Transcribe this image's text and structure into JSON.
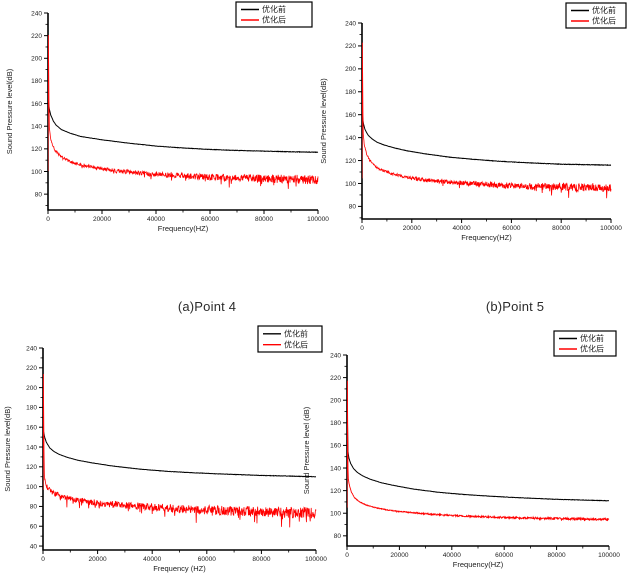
{
  "captions": {
    "a": "(a)Point 4",
    "b": "(b)Point 5"
  },
  "colors": {
    "before": "#000000",
    "after": "#ff0000"
  },
  "chart_data": [
    {
      "id": "top-left-point4",
      "type": "line",
      "title": "",
      "xlabel": "Frequency(HZ)",
      "ylabel": "Sound Pressure level(dB)",
      "xlim": [
        0,
        100000
      ],
      "ylim": [
        66,
        240
      ],
      "xticks": [
        0,
        20000,
        40000,
        60000,
        80000,
        100000
      ],
      "yticks": [
        80,
        100,
        120,
        140,
        160,
        180,
        200,
        220,
        240
      ],
      "xminor": 10000,
      "yminor": 10,
      "grid": false,
      "legend_position": "top-center-right",
      "series": [
        {
          "name": "优化前",
          "color": "#000000",
          "width": 1.0,
          "seed": 101,
          "noise_db": [
            0.1,
            0.25
          ],
          "points": [
            [
              0,
              148
            ],
            [
              100,
              163
            ],
            [
              500,
              155
            ],
            [
              1000,
              150
            ],
            [
              2000,
              144.5
            ],
            [
              3000,
              141
            ],
            [
              5000,
              137
            ],
            [
              8000,
              134
            ],
            [
              12000,
              131
            ],
            [
              16000,
              129.5
            ],
            [
              20000,
              128
            ],
            [
              30000,
              125
            ],
            [
              40000,
              122.5
            ],
            [
              50000,
              120.8
            ],
            [
              60000,
              119.5
            ],
            [
              70000,
              118.6
            ],
            [
              80000,
              118
            ],
            [
              90000,
              117.4
            ],
            [
              100000,
              117
            ]
          ]
        },
        {
          "name": "优化后",
          "color": "#ff0000",
          "width": 0.8,
          "seed": 102,
          "noise_db": [
            0.8,
            4.2
          ],
          "spike_prob": 0.035,
          "spike_scale": 2.2,
          "points": [
            [
              0,
              100
            ],
            [
              130,
              225
            ],
            [
              450,
              140
            ],
            [
              900,
              130
            ],
            [
              1500,
              124.5
            ],
            [
              2500,
              119
            ],
            [
              4000,
              115
            ],
            [
              6000,
              111.5
            ],
            [
              9000,
              108
            ],
            [
              13000,
              105.5
            ],
            [
              18000,
              103.3
            ],
            [
              25000,
              100.8
            ],
            [
              35000,
              98.5
            ],
            [
              45000,
              96.8
            ],
            [
              55000,
              95.6
            ],
            [
              70000,
              94.3
            ],
            [
              85000,
              93.5
            ],
            [
              100000,
              93
            ]
          ]
        }
      ]
    },
    {
      "id": "top-right-point5",
      "type": "line",
      "title": "",
      "xlabel": "Frequency(HZ)",
      "ylabel": "Sound Pressure level(dB)",
      "xlim": [
        0,
        100000
      ],
      "ylim": [
        69,
        240
      ],
      "xticks": [
        0,
        20000,
        40000,
        60000,
        80000,
        100000
      ],
      "yticks": [
        80,
        100,
        120,
        140,
        160,
        180,
        200,
        220,
        240
      ],
      "xminor": 10000,
      "yminor": 10,
      "grid": false,
      "legend_position": "top-right",
      "series": [
        {
          "name": "优化前",
          "color": "#000000",
          "width": 1.0,
          "seed": 201,
          "noise_db": [
            0.1,
            0.25
          ],
          "points": [
            [
              0,
              137
            ],
            [
              100,
              160
            ],
            [
              600,
              152
            ],
            [
              1200,
              147
            ],
            [
              2500,
              142
            ],
            [
              4000,
              139
            ],
            [
              6000,
              136
            ],
            [
              9000,
              133.5
            ],
            [
              13000,
              131
            ],
            [
              18000,
              128.5
            ],
            [
              25000,
              126
            ],
            [
              35000,
              123
            ],
            [
              45000,
              121
            ],
            [
              55000,
              119.4
            ],
            [
              65000,
              118.2
            ],
            [
              80000,
              116.8
            ],
            [
              100000,
              116
            ]
          ]
        },
        {
          "name": "优化后",
          "color": "#ff0000",
          "width": 0.8,
          "seed": 202,
          "noise_db": [
            0.8,
            3.8
          ],
          "spike_prob": 0.03,
          "spike_scale": 2.2,
          "points": [
            [
              0,
              105
            ],
            [
              130,
              228
            ],
            [
              450,
              145
            ],
            [
              900,
              134
            ],
            [
              1800,
              126
            ],
            [
              3000,
              120.5
            ],
            [
              5000,
              115.5
            ],
            [
              8000,
              111.5
            ],
            [
              12000,
              108.5
            ],
            [
              17000,
              106
            ],
            [
              24000,
              103.5
            ],
            [
              33000,
              101.5
            ],
            [
              43000,
              100
            ],
            [
              55000,
              98.5
            ],
            [
              70000,
              97.5
            ],
            [
              85000,
              96.8
            ],
            [
              100000,
              96.3
            ]
          ]
        }
      ]
    },
    {
      "id": "bottom-left",
      "type": "line",
      "title": "",
      "xlabel": "Frequency (HZ)",
      "ylabel": "Sound Pressure level(dB)",
      "xlim": [
        0,
        100000
      ],
      "ylim": [
        36,
        240
      ],
      "xticks": [
        0,
        20000,
        40000,
        60000,
        80000,
        100000
      ],
      "yticks": [
        40,
        60,
        80,
        100,
        120,
        140,
        160,
        180,
        200,
        220,
        240
      ],
      "xminor": 10000,
      "yminor": 10,
      "grid": false,
      "legend_position": "top-center-right",
      "series": [
        {
          "name": "优化前",
          "color": "#000000",
          "width": 1.0,
          "seed": 301,
          "noise_db": [
            0.1,
            0.25
          ],
          "points": [
            [
              0,
              125
            ],
            [
              100,
              157
            ],
            [
              600,
              150
            ],
            [
              1200,
              145
            ],
            [
              2500,
              139
            ],
            [
              4000,
              135.5
            ],
            [
              6000,
              132.5
            ],
            [
              9000,
              129.5
            ],
            [
              13000,
              126.5
            ],
            [
              18000,
              124
            ],
            [
              25000,
              121
            ],
            [
              35000,
              117.8
            ],
            [
              45000,
              115.5
            ],
            [
              55000,
              114
            ],
            [
              65000,
              112.8
            ],
            [
              80000,
              111.3
            ],
            [
              100000,
              110
            ]
          ]
        },
        {
          "name": "优化后",
          "color": "#ff0000",
          "width": 0.8,
          "seed": 302,
          "noise_db": [
            2.5,
            6.0
          ],
          "spike_prob": 0.05,
          "spike_scale": 2.6,
          "points": [
            [
              0,
              95
            ],
            [
              130,
              220
            ],
            [
              450,
              110
            ],
            [
              900,
              103
            ],
            [
              1800,
              98
            ],
            [
              3000,
              95
            ],
            [
              5000,
              92
            ],
            [
              8000,
              89
            ],
            [
              12000,
              86.5
            ],
            [
              17000,
              84.5
            ],
            [
              24000,
              82.5
            ],
            [
              33000,
              80.5
            ],
            [
              43000,
              79
            ],
            [
              55000,
              77
            ],
            [
              70000,
              75.5
            ],
            [
              85000,
              74
            ],
            [
              100000,
              73.5
            ]
          ]
        }
      ]
    },
    {
      "id": "bottom-right",
      "type": "line",
      "title": "",
      "xlabel": "Frequency(HZ)",
      "ylabel": "Sound Pressure level (dB)",
      "xlim": [
        0,
        100000
      ],
      "ylim": [
        71,
        240
      ],
      "xticks": [
        0,
        20000,
        40000,
        60000,
        80000,
        100000
      ],
      "yticks": [
        80,
        100,
        120,
        140,
        160,
        180,
        200,
        220,
        240
      ],
      "xminor": 10000,
      "yminor": 10,
      "grid": false,
      "legend_position": "top-right",
      "series": [
        {
          "name": "优化前",
          "color": "#000000",
          "width": 1.0,
          "seed": 401,
          "noise_db": [
            0.1,
            0.2
          ],
          "points": [
            [
              0,
              122
            ],
            [
              90,
              195
            ],
            [
              350,
              155
            ],
            [
              700,
              149
            ],
            [
              1400,
              144
            ],
            [
              2500,
              139.5
            ],
            [
              4000,
              136
            ],
            [
              6000,
              133
            ],
            [
              9000,
              130
            ],
            [
              13000,
              127
            ],
            [
              18000,
              124.5
            ],
            [
              25000,
              121.5
            ],
            [
              35000,
              118.5
            ],
            [
              45000,
              116.5
            ],
            [
              55000,
              115
            ],
            [
              65000,
              113.8
            ],
            [
              80000,
              112.3
            ],
            [
              100000,
              111
            ]
          ]
        },
        {
          "name": "优化后",
          "color": "#ff0000",
          "width": 0.9,
          "seed": 402,
          "noise_db": [
            0.3,
            1.1
          ],
          "spike_prob": 0.015,
          "spike_scale": 1.5,
          "points": [
            [
              0,
              105
            ],
            [
              110,
              222
            ],
            [
              400,
              132
            ],
            [
              800,
              126
            ],
            [
              1600,
              119
            ],
            [
              2800,
              114
            ],
            [
              4500,
              110.5
            ],
            [
              7000,
              107.5
            ],
            [
              10000,
              105.5
            ],
            [
              15000,
              103
            ],
            [
              21000,
              101.3
            ],
            [
              30000,
              99.5
            ],
            [
              40000,
              98
            ],
            [
              50000,
              97
            ],
            [
              60000,
              96.2
            ],
            [
              80000,
              95.2
            ],
            [
              100000,
              94.6
            ]
          ]
        }
      ]
    }
  ]
}
